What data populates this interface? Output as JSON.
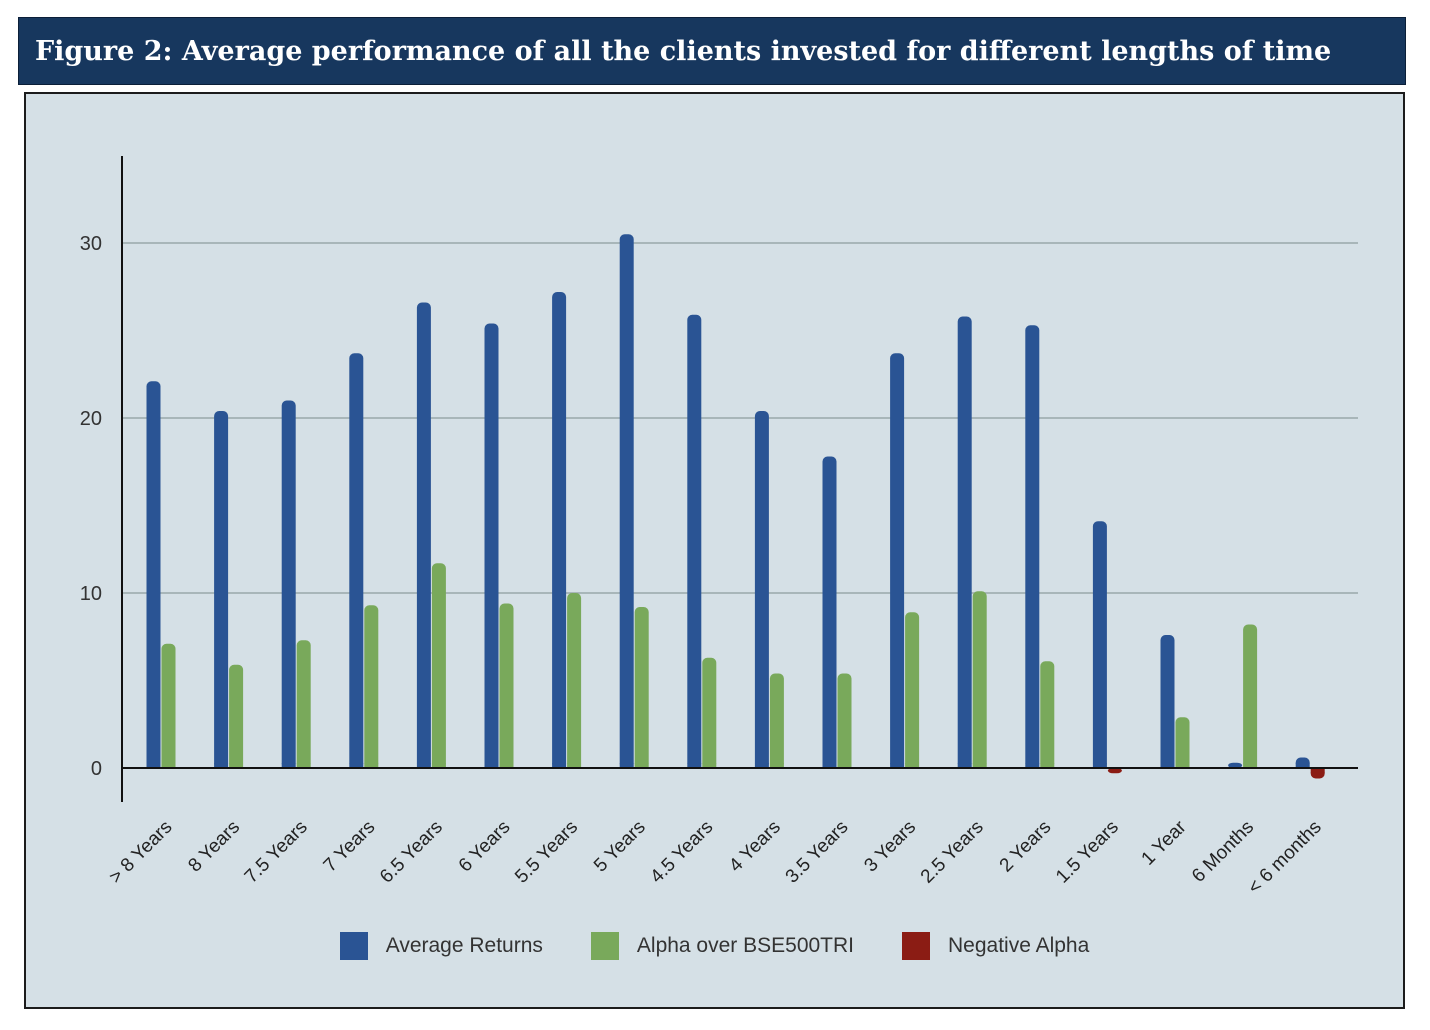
{
  "header": {
    "title": "Figure 2:  Average performance of all the clients invested for different lengths of time"
  },
  "colors": {
    "header_bg": "#17375e",
    "chart_bg": "#d5e0e6",
    "average_returns": "#2a5494",
    "alpha": "#79a95b",
    "negative_alpha": "#8b1c14",
    "gridline": "#9aa7aa"
  },
  "chart_data": {
    "type": "bar",
    "title": "",
    "xlabel": "",
    "ylabel": "",
    "ylim": [
      -2,
      35
    ],
    "yticks": [
      0,
      10,
      20,
      30
    ],
    "grid": true,
    "legend_position": "bottom",
    "categories": [
      "> 8 Years",
      "8 Years",
      "7.5 Years",
      "7 Years",
      "6.5 Years",
      "6 Years",
      "5.5 Years",
      "5 Years",
      "4.5 Years",
      "4 Years",
      "3.5 Years",
      "3 Years",
      "2.5 Years",
      "2 Years",
      "1.5 Years",
      "1 Year",
      "6 Months",
      "< 6 months"
    ],
    "series": [
      {
        "name": "Average Returns",
        "color": "#2a5494",
        "values": [
          22.1,
          20.4,
          21.0,
          23.7,
          26.6,
          25.4,
          27.2,
          30.5,
          25.9,
          20.4,
          17.8,
          23.7,
          25.8,
          25.3,
          14.1,
          7.6,
          0.3,
          0.6
        ]
      },
      {
        "name": "Alpha over BSE500TRI",
        "color": "#79a95b",
        "values": [
          7.1,
          5.9,
          7.3,
          9.3,
          11.7,
          9.4,
          10.0,
          9.2,
          6.3,
          5.4,
          5.4,
          8.9,
          10.1,
          6.1,
          null,
          2.9,
          8.2,
          null
        ]
      },
      {
        "name": "Negative Alpha",
        "color": "#8b1c14",
        "values": [
          null,
          null,
          null,
          null,
          null,
          null,
          null,
          null,
          null,
          null,
          null,
          null,
          null,
          null,
          -0.3,
          null,
          null,
          -0.6
        ]
      }
    ]
  }
}
